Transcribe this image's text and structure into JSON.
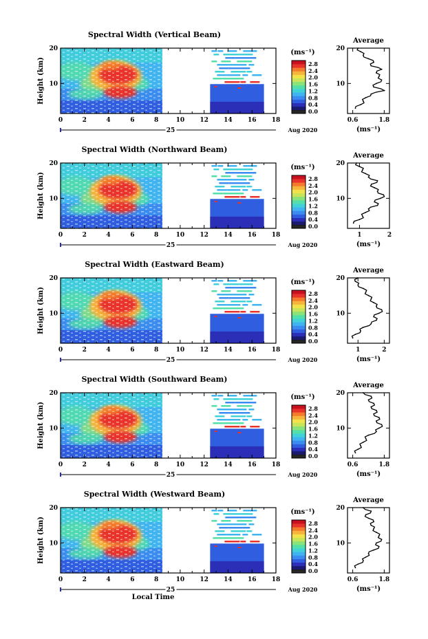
{
  "chart_data": [
    {
      "type": "heatmap",
      "title": "Spectral Width (Vertical Beam)",
      "ylabel": "Height (km)",
      "x_ticks": [
        "0",
        "2",
        "4",
        "6",
        "8",
        "10",
        "12",
        "14",
        "16",
        "18"
      ],
      "y_ticks": [
        "20",
        "10"
      ],
      "xlim": [
        0,
        18
      ],
      "ylim": [
        1.5,
        20
      ],
      "date_label": "25",
      "month_label": "Aug 2020",
      "data_gap": [
        8.5,
        12.5
      ],
      "colorbar": {
        "unit": "(ms⁻¹)",
        "ticks": [
          "2.8",
          "2.4",
          "2.0",
          "1.6",
          "1.2",
          "0.8",
          "0.4",
          "0.0"
        ]
      },
      "profile": {
        "title": "Average",
        "xlabel": "(ms⁻¹)",
        "x_ticks": [
          "0.6",
          "1.8"
        ],
        "y_ticks": [
          "20",
          "10"
        ],
        "xlim": [
          0.4,
          2.0
        ],
        "heights": [
          3,
          4,
          5,
          6,
          7,
          8,
          9,
          10,
          11,
          12,
          13,
          14,
          15,
          16,
          17,
          18,
          19,
          20
        ],
        "values": [
          0.7,
          0.9,
          1.0,
          1.1,
          1.3,
          1.8,
          1.4,
          1.5,
          1.7,
          1.6,
          1.5,
          1.7,
          1.3,
          1.4,
          1.2,
          1.0,
          0.9,
          0.8
        ]
      }
    },
    {
      "type": "heatmap",
      "title": "Spectral Width (Northward Beam)",
      "ylabel": "Height (km)",
      "x_ticks": [
        "0",
        "2",
        "4",
        "6",
        "8",
        "10",
        "12",
        "14",
        "16",
        "18"
      ],
      "y_ticks": [
        "20",
        "10"
      ],
      "xlim": [
        0,
        18
      ],
      "ylim": [
        1.5,
        20
      ],
      "date_label": "25",
      "month_label": "Aug 2020",
      "data_gap": [
        8.5,
        12.5
      ],
      "colorbar": {
        "unit": "(ms⁻¹)",
        "ticks": [
          "2.8",
          "2.4",
          "2.0",
          "1.6",
          "1.2",
          "0.8",
          "0.4",
          "0.0"
        ]
      },
      "profile": {
        "title": "Average",
        "xlabel": "(ms⁻¹)",
        "x_ticks": [
          "1",
          "2"
        ],
        "y_ticks": [
          "20",
          "10"
        ],
        "xlim": [
          0.6,
          2.0
        ],
        "heights": [
          3,
          4,
          5,
          6,
          7,
          8,
          9,
          10,
          11,
          12,
          13,
          14,
          15,
          16,
          17,
          18,
          19,
          20
        ],
        "values": [
          0.8,
          1.0,
          1.1,
          1.2,
          1.3,
          1.6,
          1.5,
          1.7,
          1.8,
          1.6,
          1.5,
          1.4,
          1.6,
          1.3,
          1.2,
          1.1,
          1.0,
          0.9
        ]
      }
    },
    {
      "type": "heatmap",
      "title": "Spectral Width (Eastward Beam)",
      "ylabel": "Height (km)",
      "x_ticks": [
        "0",
        "2",
        "4",
        "6",
        "8",
        "10",
        "12",
        "14",
        "16",
        "18"
      ],
      "y_ticks": [
        "20",
        "10"
      ],
      "xlim": [
        0,
        18
      ],
      "ylim": [
        1.5,
        20
      ],
      "date_label": "25",
      "month_label": "Aug 2020",
      "data_gap": [
        8.5,
        12.5
      ],
      "colorbar": {
        "unit": "(ms⁻¹)",
        "ticks": [
          "2.8",
          "2.4",
          "2.0",
          "1.6",
          "1.2",
          "0.8",
          "0.4",
          "0.0"
        ]
      },
      "profile": {
        "title": "Average",
        "xlabel": "(ms⁻¹)",
        "x_ticks": [
          "1",
          "2"
        ],
        "y_ticks": [
          "20",
          "10"
        ],
        "xlim": [
          0.6,
          2.2
        ],
        "heights": [
          3,
          4,
          5,
          6,
          7,
          8,
          9,
          10,
          11,
          12,
          13,
          14,
          15,
          16,
          17,
          18,
          19,
          20
        ],
        "values": [
          0.8,
          0.9,
          1.1,
          1.2,
          1.5,
          1.7,
          1.6,
          1.8,
          1.9,
          1.7,
          1.6,
          1.5,
          1.4,
          1.3,
          1.2,
          1.0,
          0.9,
          1.0
        ]
      }
    },
    {
      "type": "heatmap",
      "title": "Spectral Width (Southward Beam)",
      "ylabel": "Height (km)",
      "x_ticks": [
        "0",
        "2",
        "4",
        "6",
        "8",
        "10",
        "12",
        "14",
        "16",
        "18"
      ],
      "y_ticks": [
        "20",
        "10"
      ],
      "xlim": [
        0,
        18
      ],
      "ylim": [
        1.5,
        20
      ],
      "date_label": "25",
      "month_label": "Aug 2020",
      "data_gap": [
        8.5,
        12.5
      ],
      "colorbar": {
        "unit": "(ms⁻¹)",
        "ticks": [
          "2.8",
          "2.4",
          "2.0",
          "1.6",
          "1.2",
          "0.8",
          "0.4",
          "0.0"
        ]
      },
      "profile": {
        "title": "Average",
        "xlabel": "(ms⁻¹)",
        "x_ticks": [
          "0.6",
          "1.8"
        ],
        "y_ticks": [
          "20",
          "10"
        ],
        "xlim": [
          0.4,
          2.0
        ],
        "heights": [
          3,
          4,
          5,
          6,
          7,
          8,
          9,
          10,
          11,
          12,
          13,
          14,
          15,
          16,
          17,
          18,
          19,
          20
        ],
        "values": [
          0.7,
          0.8,
          0.9,
          1.0,
          1.1,
          1.2,
          1.5,
          1.6,
          1.7,
          1.5,
          1.6,
          1.4,
          1.5,
          1.3,
          1.4,
          1.2,
          1.3,
          1.0
        ]
      }
    },
    {
      "type": "heatmap",
      "title": "Spectral Width (Westward Beam)",
      "ylabel": "Height (km)",
      "x_ticks": [
        "0",
        "2",
        "4",
        "6",
        "8",
        "10",
        "12",
        "14",
        "16",
        "18"
      ],
      "y_ticks": [
        "20",
        "10"
      ],
      "xlim": [
        0,
        18
      ],
      "ylim": [
        1.5,
        20
      ],
      "date_label": "25",
      "month_label": "Aug 2020",
      "xlabel": "Local Time",
      "data_gap": [
        8.5,
        12.5
      ],
      "colorbar": {
        "unit": "(ms⁻¹)",
        "ticks": [
          "2.8",
          "2.4",
          "2.0",
          "1.6",
          "1.2",
          "0.8",
          "0.4",
          "0.0"
        ]
      },
      "profile": {
        "title": "Average",
        "xlabel": "(ms⁻¹)",
        "x_ticks": [
          "0.6",
          "1.8"
        ],
        "y_ticks": [
          "20",
          "10"
        ],
        "xlim": [
          0.4,
          2.0
        ],
        "heights": [
          3,
          4,
          5,
          6,
          7,
          8,
          9,
          10,
          11,
          12,
          13,
          14,
          15,
          16,
          17,
          18,
          19,
          20
        ],
        "values": [
          0.7,
          0.8,
          1.0,
          1.1,
          1.2,
          1.4,
          1.6,
          1.5,
          1.7,
          1.6,
          1.5,
          1.4,
          1.3,
          1.4,
          1.2,
          1.1,
          1.3,
          1.0
        ]
      }
    }
  ],
  "colormap": [
    "#1a1a6e",
    "#2b2fb8",
    "#2f5fe0",
    "#3a8cf0",
    "#3fb4f0",
    "#41d2d8",
    "#52e0a8",
    "#8ae27a",
    "#c8e45a",
    "#f2e24a",
    "#f6b43a",
    "#f47a2c",
    "#e8322a",
    "#c8101e"
  ]
}
